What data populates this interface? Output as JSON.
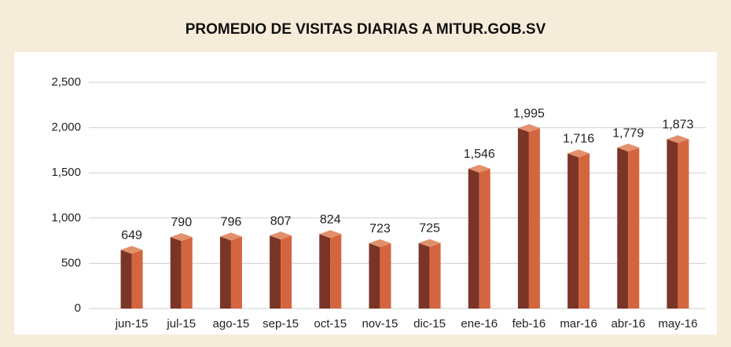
{
  "chart_data": {
    "type": "bar3d",
    "title": "PROMEDIO DE VISITAS DIARIAS A MITUR.GOB.SV",
    "categories": [
      "jun-15",
      "jul-15",
      "ago-15",
      "sep-15",
      "oct-15",
      "nov-15",
      "dic-15",
      "ene-16",
      "feb-16",
      "mar-16",
      "abr-16",
      "may-16"
    ],
    "values": [
      649,
      790,
      796,
      807,
      824,
      723,
      725,
      1546,
      1995,
      1716,
      1779,
      1873
    ],
    "value_labels": [
      "649",
      "790",
      "796",
      "807",
      "824",
      "723",
      "725",
      "1,546",
      "1,995",
      "1,716",
      "1,779",
      "1,873"
    ],
    "colors": {
      "front": "#7b3527",
      "side": "#d4663f",
      "top": "#e2906c"
    },
    "ylim": [
      0,
      2500
    ],
    "yticks": [
      0,
      500,
      {
        "value": 1000,
        "label": "1,000"
      },
      {
        "value": 1500,
        "label": "1,500"
      },
      {
        "value": 2000,
        "label": "2,000"
      },
      {
        "value": 2500,
        "label": "2,500"
      }
    ],
    "grid": true
  }
}
